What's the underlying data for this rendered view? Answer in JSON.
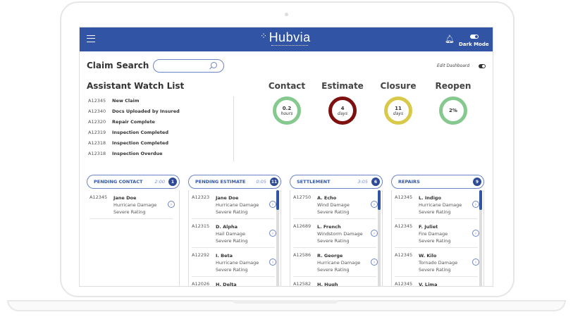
{
  "header": {
    "app_name": "Hubvia",
    "dark_mode_label": "Dark Mode",
    "brand_color": "#3154a5",
    "icons": [
      "menu-icon",
      "bell-icon",
      "toggle-icon"
    ]
  },
  "search": {
    "label": "Claim Search",
    "placeholder": ""
  },
  "edit_dashboard": "Edit Dashboard",
  "watch_list": {
    "title": "Assistant Watch List",
    "items": [
      {
        "id": "A12345",
        "text": "New Claim"
      },
      {
        "id": "A12340",
        "text": "Docs Uploaded by Insured"
      },
      {
        "id": "A12320",
        "text": "Repair Complete"
      },
      {
        "id": "A12319",
        "text": "Inspection Completed"
      },
      {
        "id": "A12318",
        "text": "Inspection Completed"
      },
      {
        "id": "A12318",
        "text": "Inspection Overdue"
      }
    ]
  },
  "metrics": [
    {
      "title": "Contact",
      "value": "0.2",
      "unit": "hours",
      "color": "#85c98e"
    },
    {
      "title": "Estimate",
      "value": "4",
      "unit": "days",
      "color": "#7e1010"
    },
    {
      "title": "Closure",
      "value": "11",
      "unit": "days",
      "color": "#d9c94a"
    },
    {
      "title": "Reopen",
      "value": "2%",
      "unit": "",
      "color": "#85c98e"
    }
  ],
  "columns": [
    {
      "name": "PENDING CONTACT",
      "time": "2:00",
      "count": "1",
      "scroll": false,
      "cards": [
        {
          "id": "A12345",
          "name": "Jane Doe",
          "damage": "Hurricane Damage",
          "rating": "Severe Rating"
        }
      ]
    },
    {
      "name": "PENDING ESTIMATE",
      "time": "0:05",
      "count": "11",
      "scroll": true,
      "cards": [
        {
          "id": "A12323",
          "name": "Jane Doe",
          "damage": "Hurricane Damage",
          "rating": "Severe Rating"
        },
        {
          "id": "A12315",
          "name": "D. Alpha",
          "damage": "Hail Damage",
          "rating": "Severe Rating"
        },
        {
          "id": "A12292",
          "name": "I. Beta",
          "damage": "Hurricane Damage",
          "rating": "Severe Rating"
        },
        {
          "id": "A12026",
          "name": "H. Delta",
          "damage": "",
          "rating": ""
        }
      ]
    },
    {
      "name": "SETTLEMENT",
      "time": "3:05",
      "count": "6",
      "scroll": true,
      "cards": [
        {
          "id": "A12750",
          "name": "A. Echo",
          "damage": "Wind Damage",
          "rating": "Severe Rating"
        },
        {
          "id": "A12689",
          "name": "L. French",
          "damage": "Windstorm Damage",
          "rating": "Severe Rating"
        },
        {
          "id": "A12586",
          "name": "R. George",
          "damage": "Hurricane Damage",
          "rating": "Severe Rating"
        },
        {
          "id": "A12582",
          "name": "H. Hugh",
          "damage": "",
          "rating": ""
        }
      ]
    },
    {
      "name": "REPAIRS",
      "time": "",
      "count": "9",
      "scroll": true,
      "cards": [
        {
          "id": "A12345",
          "name": "L. Indigo",
          "damage": "Hurricane Damage",
          "rating": "Severe Rating"
        },
        {
          "id": "A12345",
          "name": "F. Juliet",
          "damage": "Fire Damage",
          "rating": "Severe Rating"
        },
        {
          "id": "A12345",
          "name": "W. Kilo",
          "damage": "Tornado Damage",
          "rating": "Severe Rating"
        },
        {
          "id": "A12345",
          "name": "V. Lima",
          "damage": "",
          "rating": ""
        }
      ]
    }
  ]
}
